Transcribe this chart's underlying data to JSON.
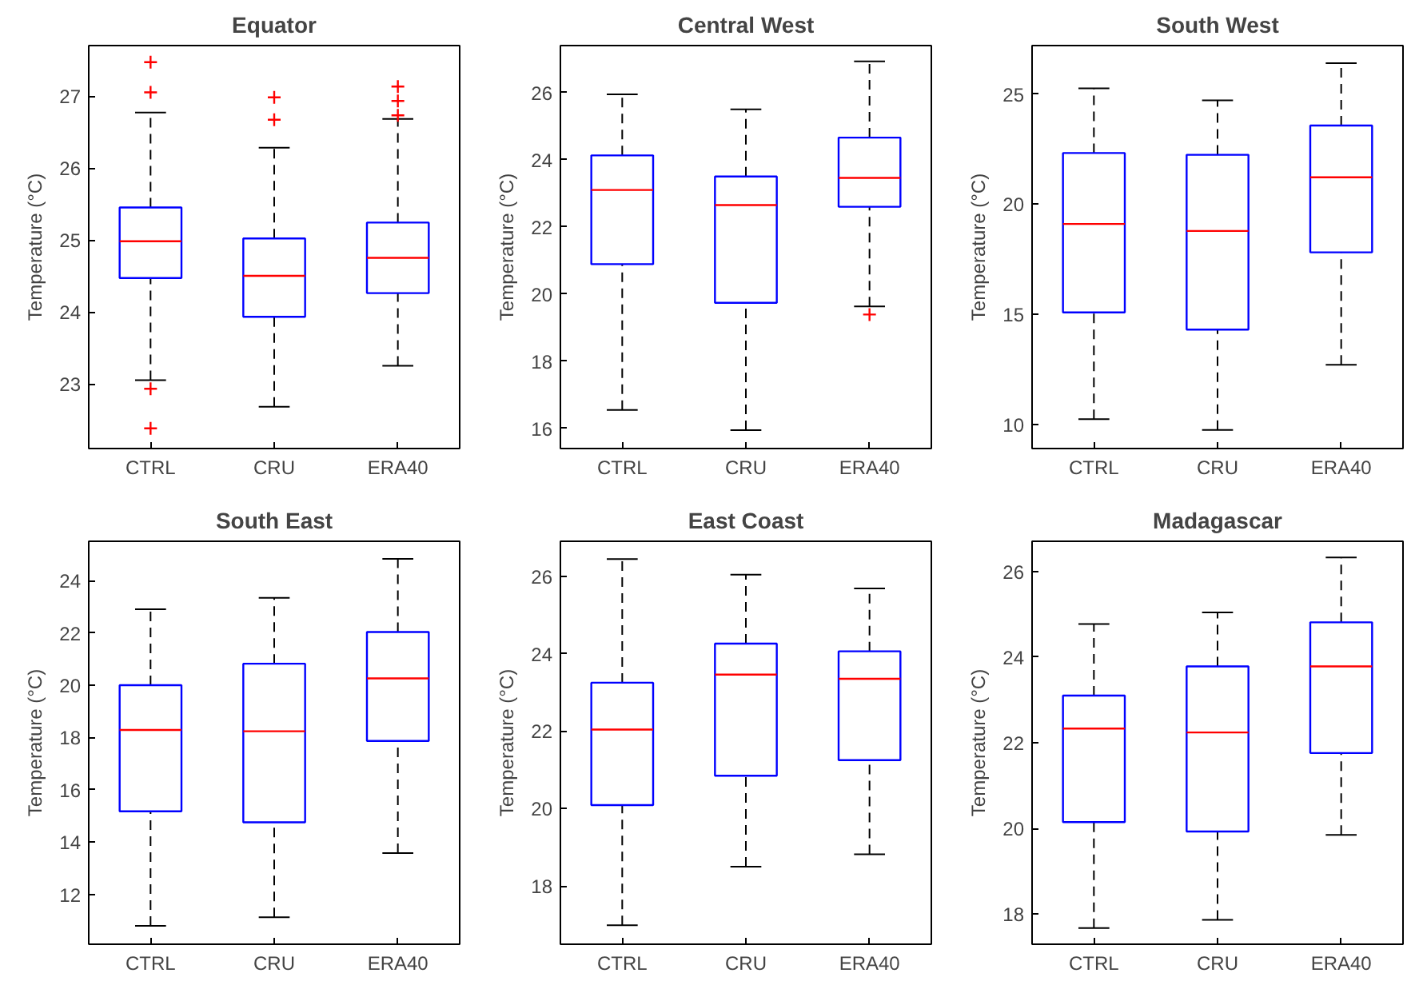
{
  "chart_data": [
    {
      "type": "box",
      "title": "Equator",
      "ylabel": "Temperature (°C)",
      "categories": [
        "CTRL",
        "CRU",
        "ERA40"
      ],
      "ylim": [
        22.1,
        27.7
      ],
      "yticks": [
        23,
        24,
        25,
        26,
        27
      ],
      "grid": false,
      "marker": "cross",
      "series": [
        {
          "color": "#0000ff",
          "boxes": [
            {
              "low": 23.05,
              "q1": 24.47,
              "median": 24.98,
              "q3": 25.45,
              "high": 26.77,
              "outliers": [
                27.47,
                27.05,
                22.93,
                22.38
              ]
            },
            {
              "low": 22.68,
              "q1": 23.93,
              "median": 24.5,
              "q3": 25.02,
              "high": 26.28,
              "outliers": [
                26.98,
                26.67
              ]
            },
            {
              "low": 23.25,
              "q1": 24.26,
              "median": 24.75,
              "q3": 25.24,
              "high": 26.68,
              "outliers": [
                27.13,
                26.93,
                26.73
              ]
            }
          ]
        }
      ]
    },
    {
      "type": "box",
      "title": "Central West",
      "ylabel": "Temperature (°C)",
      "categories": [
        "CTRL",
        "CRU",
        "ERA40"
      ],
      "ylim": [
        15.4,
        27.4
      ],
      "yticks": [
        16,
        18,
        20,
        22,
        24,
        26
      ],
      "grid": false,
      "marker": "cross",
      "series": [
        {
          "color": "#0000ff",
          "boxes": [
            {
              "low": 16.55,
              "q1": 20.89,
              "median": 23.1,
              "q3": 24.13,
              "high": 25.95
            },
            {
              "low": 15.95,
              "q1": 19.74,
              "median": 22.65,
              "q3": 23.5,
              "high": 25.5
            },
            {
              "low": 19.63,
              "q1": 22.6,
              "median": 23.46,
              "q3": 24.66,
              "high": 26.93,
              "outliers": [
                19.39
              ]
            }
          ]
        }
      ]
    },
    {
      "type": "box",
      "title": "South West",
      "ylabel": "Temperature (°C)",
      "categories": [
        "CTRL",
        "CRU",
        "ERA40"
      ],
      "ylim": [
        8.9,
        27.2
      ],
      "yticks": [
        10,
        15,
        20,
        25
      ],
      "grid": false,
      "marker": "cross",
      "series": [
        {
          "color": "#0000ff",
          "boxes": [
            {
              "low": 10.23,
              "q1": 15.08,
              "median": 19.1,
              "q3": 22.32,
              "high": 25.26
            },
            {
              "low": 9.74,
              "q1": 14.3,
              "median": 18.78,
              "q3": 22.24,
              "high": 24.71
            },
            {
              "low": 12.7,
              "q1": 17.81,
              "median": 21.22,
              "q3": 23.57,
              "high": 26.4
            }
          ]
        }
      ]
    },
    {
      "type": "box",
      "title": "South East",
      "ylabel": "Temperature (°C)",
      "categories": [
        "CTRL",
        "CRU",
        "ERA40"
      ],
      "ylim": [
        10.1,
        25.5
      ],
      "yticks": [
        12,
        14,
        16,
        18,
        20,
        22,
        24
      ],
      "grid": false,
      "marker": "cross",
      "series": [
        {
          "color": "#0000ff",
          "boxes": [
            {
              "low": 10.8,
              "q1": 15.18,
              "median": 18.29,
              "q3": 20.0,
              "high": 22.9
            },
            {
              "low": 11.13,
              "q1": 14.76,
              "median": 18.24,
              "q3": 20.82,
              "high": 23.34
            },
            {
              "low": 13.58,
              "q1": 17.87,
              "median": 20.26,
              "q3": 22.03,
              "high": 24.83
            }
          ]
        }
      ]
    },
    {
      "type": "box",
      "title": "East Coast",
      "ylabel": "Temperature (°C)",
      "categories": [
        "CTRL",
        "CRU",
        "ERA40"
      ],
      "ylim": [
        16.5,
        26.9
      ],
      "yticks": [
        18,
        20,
        22,
        24,
        26
      ],
      "grid": false,
      "marker": "cross",
      "series": [
        {
          "color": "#0000ff",
          "boxes": [
            {
              "low": 16.99,
              "q1": 20.09,
              "median": 22.04,
              "q3": 23.25,
              "high": 26.44
            },
            {
              "low": 18.5,
              "q1": 20.85,
              "median": 23.46,
              "q3": 24.26,
              "high": 26.04
            },
            {
              "low": 18.82,
              "q1": 21.25,
              "median": 23.35,
              "q3": 24.06,
              "high": 25.68
            }
          ]
        }
      ]
    },
    {
      "type": "box",
      "title": "Madagascar",
      "ylabel": "Temperature (°C)",
      "categories": [
        "CTRL",
        "CRU",
        "ERA40"
      ],
      "ylim": [
        17.3,
        26.7
      ],
      "yticks": [
        18,
        20,
        22,
        24,
        26
      ],
      "grid": false,
      "marker": "cross",
      "series": [
        {
          "color": "#0000ff",
          "boxes": [
            {
              "low": 17.68,
              "q1": 20.15,
              "median": 22.33,
              "q3": 23.1,
              "high": 24.77
            },
            {
              "low": 17.87,
              "q1": 19.93,
              "median": 22.24,
              "q3": 23.78,
              "high": 25.04
            },
            {
              "low": 19.85,
              "q1": 21.76,
              "median": 23.78,
              "q3": 24.81,
              "high": 26.32
            }
          ]
        }
      ]
    }
  ]
}
